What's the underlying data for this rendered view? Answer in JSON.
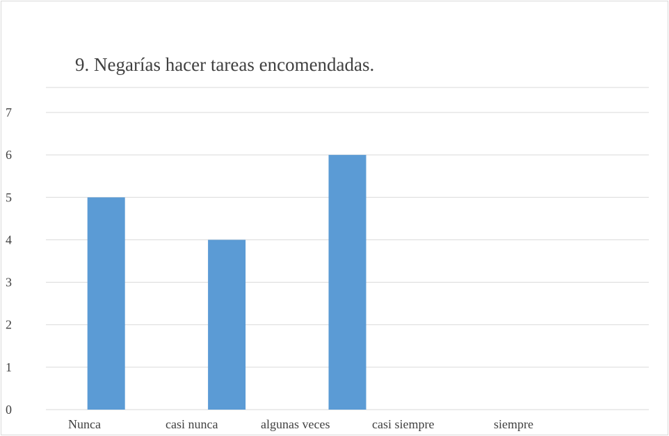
{
  "chart_data": {
    "type": "bar",
    "title": "9. Negarías hacer tareas encomendadas.",
    "categories": [
      "Nunca",
      "casi nunca",
      "algunas veces",
      "casi siempre",
      "siempre"
    ],
    "values": [
      5,
      4,
      6,
      0,
      0
    ],
    "yticks": [
      "0",
      "1",
      "2",
      "3",
      "4",
      "5",
      "6",
      "7"
    ],
    "ylim": [
      0,
      7
    ],
    "xlabel": "",
    "ylabel": "",
    "grid": true,
    "legend": "none",
    "colors": {
      "bar": "#5b9bd5",
      "grid": "#d9d9d9",
      "text": "#404040"
    }
  }
}
